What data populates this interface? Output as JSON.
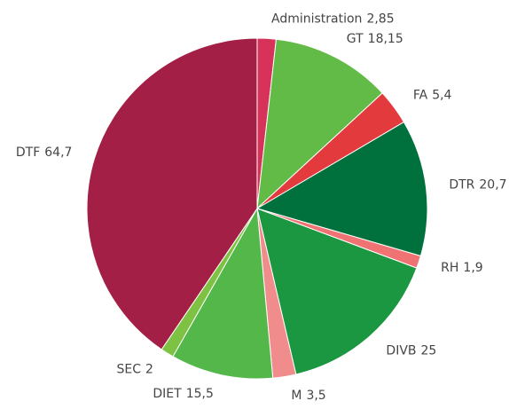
{
  "chart_data": {
    "type": "pie",
    "categories": [
      "Administration",
      "GT",
      "FA",
      "DTR",
      "RH",
      "DIVB",
      "M",
      "DIET",
      "SEC",
      "DTF"
    ],
    "values": [
      2.85,
      18.15,
      5.4,
      20.7,
      1.9,
      25,
      3.5,
      15.5,
      2,
      64.7
    ],
    "value_labels": [
      "2,85",
      "18,15",
      "5,4",
      "20,7",
      "1,9",
      "25",
      "3,5",
      "15,5",
      "2",
      "64,7"
    ],
    "colors": [
      "#d7335a",
      "#63bb47",
      "#e33b3d",
      "#00703c",
      "#ef7373",
      "#1b9641",
      "#f08c8c",
      "#53b849",
      "#7dc242",
      "#a31f45"
    ]
  }
}
